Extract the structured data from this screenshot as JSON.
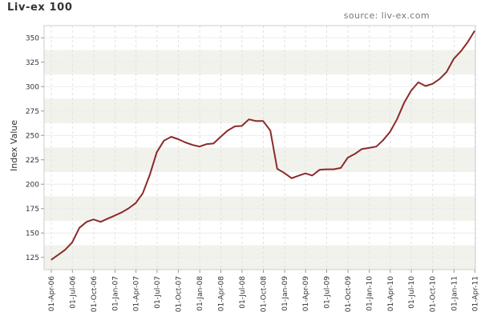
{
  "title": "Liv-ex 100",
  "source": "source: liv-ex.com",
  "chart_data": {
    "type": "line",
    "title": "Liv-ex 100",
    "ylabel": "Index Value",
    "xlabel": "",
    "ylim": [
      112.5,
      362.5
    ],
    "xlim": [
      "2006-03-01",
      "2011-04-03"
    ],
    "yticks": [
      125,
      150,
      175,
      200,
      225,
      250,
      275,
      300,
      325,
      350
    ],
    "xticks": [
      {
        "date": "2006-04-01",
        "label": "01-Apr-06"
      },
      {
        "date": "2006-07-01",
        "label": "01-Jul-06"
      },
      {
        "date": "2006-10-01",
        "label": "01-Oct-06"
      },
      {
        "date": "2007-01-01",
        "label": "01-Jan-07"
      },
      {
        "date": "2007-04-01",
        "label": "01-Apr-07"
      },
      {
        "date": "2007-07-01",
        "label": "01-Jul-07"
      },
      {
        "date": "2007-10-01",
        "label": "01-Oct-07"
      },
      {
        "date": "2008-01-01",
        "label": "01-Jan-08"
      },
      {
        "date": "2008-04-01",
        "label": "01-Apr-08"
      },
      {
        "date": "2008-07-01",
        "label": "01-Jul-08"
      },
      {
        "date": "2008-10-01",
        "label": "01-Oct-08"
      },
      {
        "date": "2009-01-01",
        "label": "01-Jan-09"
      },
      {
        "date": "2009-04-01",
        "label": "01-Apr-09"
      },
      {
        "date": "2009-07-01",
        "label": "01-Jul-09"
      },
      {
        "date": "2009-10-01",
        "label": "01-Oct-09"
      },
      {
        "date": "2010-01-01",
        "label": "01-Jan-10"
      },
      {
        "date": "2010-04-01",
        "label": "01-Apr-10"
      },
      {
        "date": "2010-07-01",
        "label": "01-Jul-10"
      },
      {
        "date": "2010-10-01",
        "label": "01-Oct-10"
      },
      {
        "date": "2011-01-01",
        "label": "01-Jan-11"
      },
      {
        "date": "2011-04-01",
        "label": "01-Apr-11"
      }
    ],
    "grid": {
      "horizontal_bands": true,
      "vertical_dashed": true
    },
    "colors": {
      "line": "#8b2a2a",
      "band": "#f2f2ec",
      "grid": "#e0e0e0",
      "axis": "#999999"
    },
    "series": [
      {
        "name": "Liv-ex 100",
        "points": [
          [
            "2006-03-31",
            122.5
          ],
          [
            "2006-04-30",
            127.5
          ],
          [
            "2006-05-31",
            132.8
          ],
          [
            "2006-06-30",
            140.3
          ],
          [
            "2006-07-31",
            155.3
          ],
          [
            "2006-08-31",
            161.4
          ],
          [
            "2006-09-30",
            163.9
          ],
          [
            "2006-10-31",
            161.4
          ],
          [
            "2006-11-30",
            164.7
          ],
          [
            "2006-12-31",
            167.9
          ],
          [
            "2007-01-31",
            171.3
          ],
          [
            "2007-02-28",
            175.2
          ],
          [
            "2007-03-31",
            180.7
          ],
          [
            "2007-04-30",
            190.5
          ],
          [
            "2007-05-31",
            210.0
          ],
          [
            "2007-06-30",
            232.8
          ],
          [
            "2007-07-31",
            244.7
          ],
          [
            "2007-08-31",
            248.6
          ],
          [
            "2007-09-30",
            246.1
          ],
          [
            "2007-10-31",
            242.8
          ],
          [
            "2007-11-30",
            240.3
          ],
          [
            "2007-12-31",
            238.6
          ],
          [
            "2008-01-31",
            241.1
          ],
          [
            "2008-02-29",
            241.7
          ],
          [
            "2008-03-31",
            248.6
          ],
          [
            "2008-04-30",
            255.0
          ],
          [
            "2008-05-31",
            259.2
          ],
          [
            "2008-06-30",
            259.7
          ],
          [
            "2008-07-31",
            266.4
          ],
          [
            "2008-08-31",
            264.7
          ],
          [
            "2008-09-30",
            264.7
          ],
          [
            "2008-10-31",
            255.0
          ],
          [
            "2008-11-30",
            215.8
          ],
          [
            "2008-12-31",
            211.4
          ],
          [
            "2009-01-31",
            206.1
          ],
          [
            "2009-02-28",
            208.6
          ],
          [
            "2009-03-31",
            211.1
          ],
          [
            "2009-04-30",
            208.9
          ],
          [
            "2009-05-31",
            214.7
          ],
          [
            "2009-06-30",
            215.3
          ],
          [
            "2009-07-31",
            215.3
          ],
          [
            "2009-08-31",
            216.7
          ],
          [
            "2009-09-30",
            227.2
          ],
          [
            "2009-10-31",
            231.1
          ],
          [
            "2009-11-30",
            236.1
          ],
          [
            "2009-12-31",
            237.2
          ],
          [
            "2010-01-31",
            238.6
          ],
          [
            "2010-02-28",
            244.7
          ],
          [
            "2010-03-31",
            253.6
          ],
          [
            "2010-04-30",
            266.4
          ],
          [
            "2010-05-31",
            283.6
          ],
          [
            "2010-06-30",
            295.8
          ],
          [
            "2010-07-31",
            304.4
          ],
          [
            "2010-08-31",
            300.6
          ],
          [
            "2010-09-30",
            302.8
          ],
          [
            "2010-10-31",
            307.8
          ],
          [
            "2010-11-30",
            315.0
          ],
          [
            "2010-12-31",
            328.6
          ],
          [
            "2011-01-31",
            336.4
          ],
          [
            "2011-02-28",
            345.3
          ],
          [
            "2011-03-31",
            357.2
          ]
        ]
      }
    ]
  }
}
